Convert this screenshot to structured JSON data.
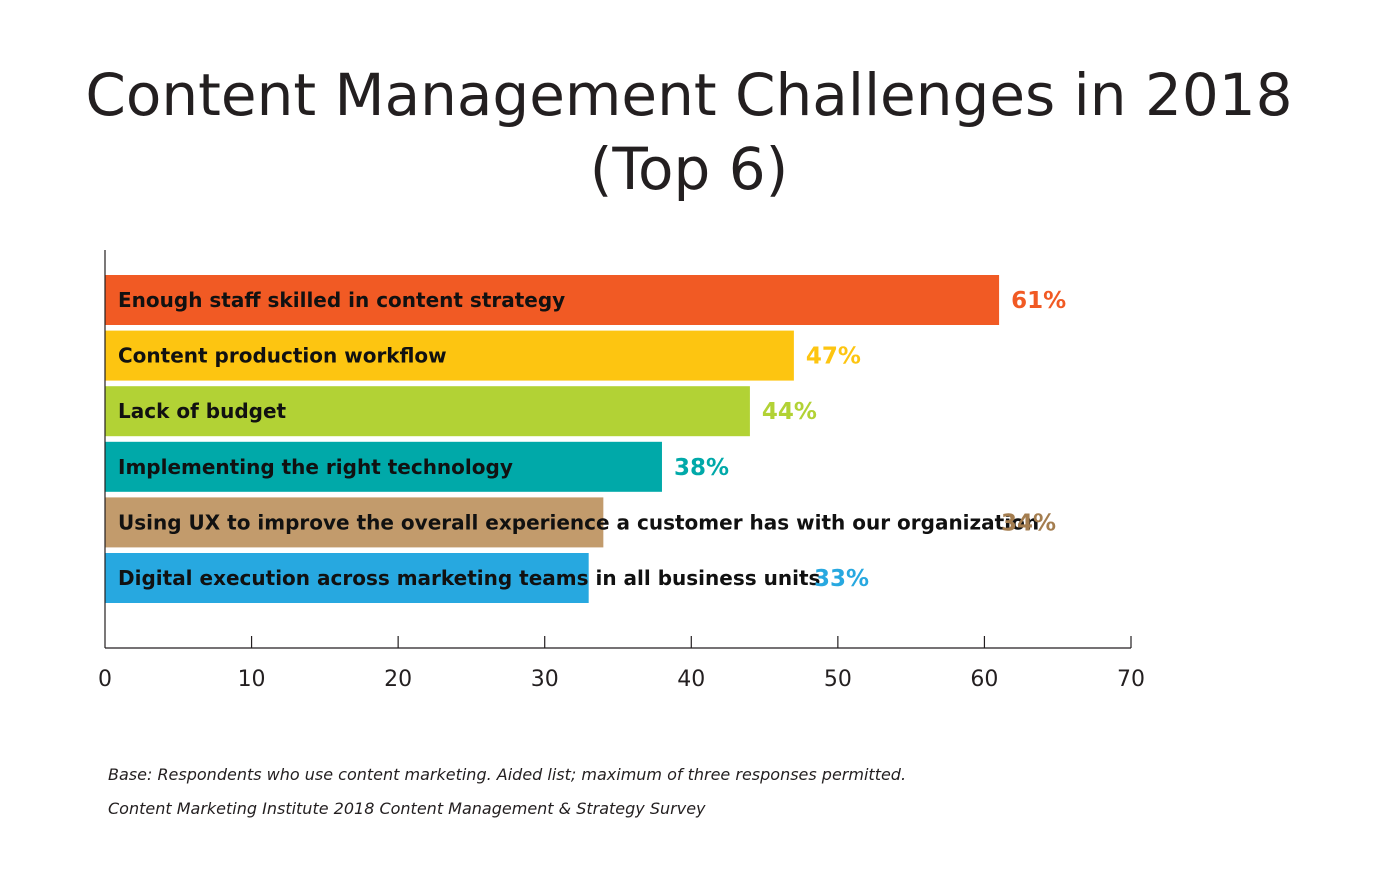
{
  "chart_data": {
    "type": "bar",
    "orientation": "horizontal",
    "title": "Content Management Challenges in 2018 (Top 6)",
    "categories": [
      "Enough staff skilled in content strategy",
      "Content production workflow",
      "Lack of budget",
      "Implementing the right technology",
      "Using UX to improve the overall experience a customer has with our organization",
      "Digital execution across marketing teams in all business units"
    ],
    "values": [
      61,
      47,
      44,
      38,
      34,
      33
    ],
    "value_labels": [
      "61%",
      "47%",
      "44%",
      "38%",
      "34%",
      "33%"
    ],
    "colors": [
      "#f15a24",
      "#fdc511",
      "#b2d235",
      "#00a9a9",
      "#c29b6c",
      "#27a8e0"
    ],
    "value_label_colors": [
      "#f15a24",
      "#fdc511",
      "#b2d235",
      "#00a9a9",
      "#a47d4f",
      "#27a8e0"
    ],
    "xlim": [
      0,
      70
    ],
    "xticks": [
      0,
      10,
      20,
      30,
      40,
      50,
      60,
      70
    ],
    "grid": false,
    "legend": "none"
  },
  "footnotes": {
    "base": "Base: Respondents who use content marketing. Aided list; maximum of three responses permitted.",
    "source": "Content Marketing Institute 2018 Content Management & Strategy Survey"
  }
}
